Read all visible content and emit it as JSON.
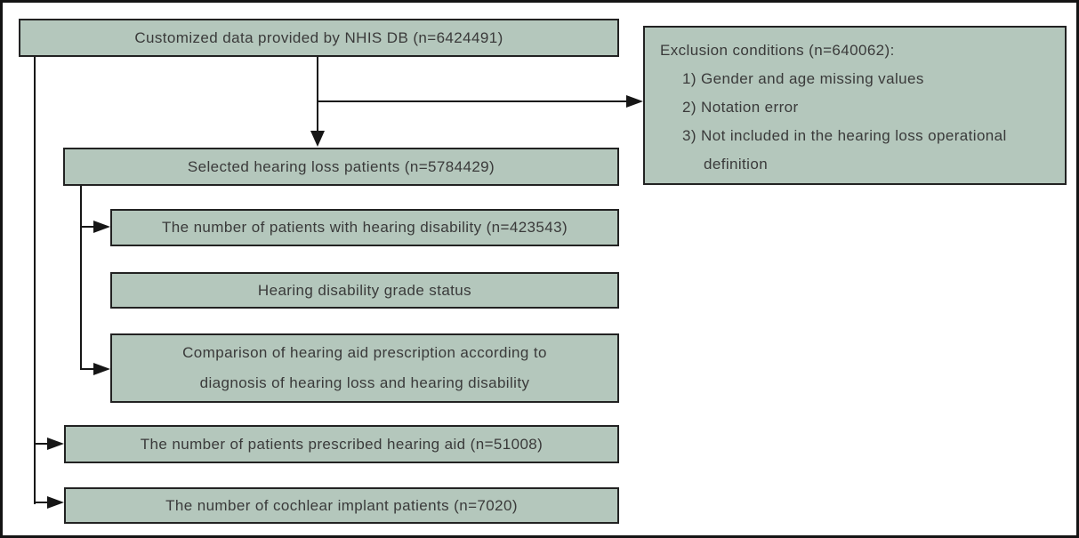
{
  "colors": {
    "box_fill": "#b4c7bc",
    "box_border": "#222222",
    "text": "#3a3a3a",
    "line": "#161616",
    "frame": "#141414",
    "background": "#ffffff"
  },
  "flowchart": {
    "nodes": {
      "source": {
        "label": "Customized data provided by NHIS DB (n=6424491)"
      },
      "selected": {
        "label": "Selected hearing loss patients (n=5784429)"
      },
      "disability": {
        "label": "The number of patients with hearing disability (n=423543)"
      },
      "grade": {
        "label": "Hearing disability grade status"
      },
      "comparison": {
        "line1": "Comparison of hearing aid prescription according to",
        "line2": "diagnosis of hearing loss and hearing disability"
      },
      "prescribed": {
        "label": "The number of patients prescribed hearing aid (n=51008)"
      },
      "cochlear": {
        "label": "The number of cochlear implant patients (n=7020)"
      }
    },
    "exclusion": {
      "title": "Exclusion conditions (n=640062):",
      "item1": "1) Gender and age missing values",
      "item2": "2) Notation error",
      "item3": "3) Not included in the hearing loss operational",
      "item3_continuation": "definition"
    }
  }
}
